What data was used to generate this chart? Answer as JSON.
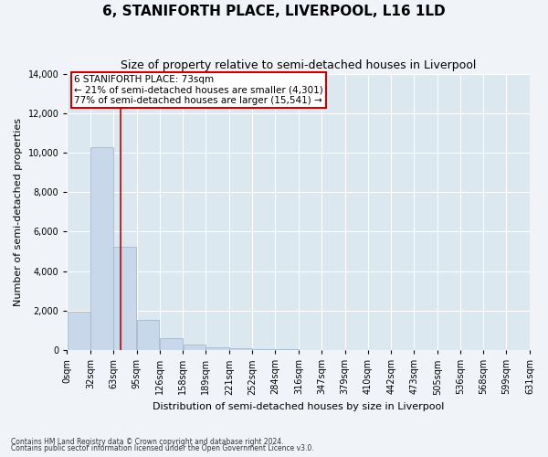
{
  "title": "6, STANIFORTH PLACE, LIVERPOOL, L16 1LD",
  "subtitle": "Size of property relative to semi-detached houses in Liverpool",
  "xlabel": "Distribution of semi-detached houses by size in Liverpool",
  "ylabel": "Number of semi-detached properties",
  "footnote1": "Contains HM Land Registry data © Crown copyright and database right 2024.",
  "footnote2": "Contains public sector information licensed under the Open Government Licence v3.0.",
  "property_size": 73,
  "annotation_line1": "6 STANIFORTH PLACE: 73sqm",
  "annotation_line2": "← 21% of semi-detached houses are smaller (4,301)",
  "annotation_line3": "77% of semi-detached houses are larger (15,541) →",
  "bar_color": "#c8d8ea",
  "bar_edge_color": "#9ab0c8",
  "line_color": "#cc0000",
  "annotation_box_color": "#ffffff",
  "annotation_box_edge": "#cc0000",
  "background_color": "#f0f4f8",
  "plot_bg_color": "#dce8f0",
  "bins": [
    0,
    32,
    63,
    95,
    126,
    158,
    189,
    221,
    252,
    284,
    316,
    347,
    379,
    410,
    442,
    473,
    505,
    536,
    568,
    599,
    631
  ],
  "bin_labels": [
    "0sqm",
    "32sqm",
    "63sqm",
    "95sqm",
    "126sqm",
    "158sqm",
    "189sqm",
    "221sqm",
    "252sqm",
    "284sqm",
    "316sqm",
    "347sqm",
    "379sqm",
    "410sqm",
    "442sqm",
    "473sqm",
    "505sqm",
    "536sqm",
    "568sqm",
    "599sqm",
    "631sqm"
  ],
  "counts": [
    1950,
    10300,
    5250,
    1550,
    600,
    270,
    130,
    100,
    70,
    50,
    0,
    0,
    0,
    0,
    0,
    0,
    0,
    0,
    0,
    0
  ],
  "ylim": [
    0,
    14000
  ],
  "yticks": [
    0,
    2000,
    4000,
    6000,
    8000,
    10000,
    12000,
    14000
  ],
  "grid_color": "#ffffff",
  "title_fontsize": 11,
  "subtitle_fontsize": 9,
  "label_fontsize": 8,
  "tick_fontsize": 7,
  "annot_fontsize": 7.5
}
